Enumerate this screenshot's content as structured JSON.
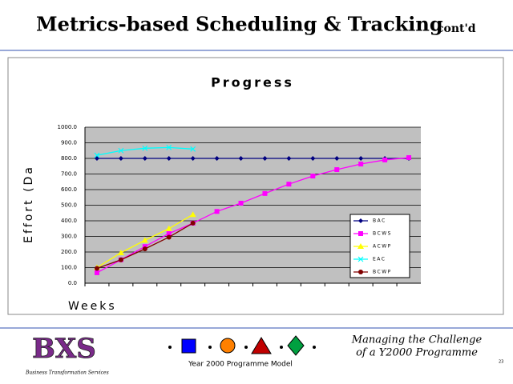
{
  "slide": {
    "title": "Metrics-based Scheduling & Tracking",
    "title_suffix": "cont'd",
    "footer_model": "Year 2000 Programme Model",
    "footer_right_1": "Managing the Challenge",
    "footer_right_2": "of a Y2000 Programme",
    "logo": "BXS",
    "logo_caption": "Business Transformation Services",
    "page_number": "23"
  },
  "chart_data": {
    "type": "line",
    "title": "Progress",
    "y_label": "Effort (Da",
    "x_label": "Weeks",
    "categories": [
      null,
      null,
      null,
      null,
      null,
      null,
      null,
      null,
      null,
      null,
      null,
      null,
      null,
      null
    ],
    "ylim": [
      0,
      1000
    ],
    "yticks": [
      {
        "value": 0,
        "label": "0.0"
      },
      {
        "value": 100,
        "label": "100.0"
      },
      {
        "value": 200,
        "label": "200.0"
      },
      {
        "value": 300,
        "label": "300.0"
      },
      {
        "value": 400,
        "label": "400.0"
      },
      {
        "value": 500,
        "label": "500.0"
      },
      {
        "value": 600,
        "label": "600.0"
      },
      {
        "value": 700,
        "label": "700.0"
      },
      {
        "value": 800,
        "label": "800.0"
      },
      {
        "value": 900,
        "label": "900.0"
      },
      {
        "value": 1000,
        "label": "1000.0"
      }
    ],
    "grid": true,
    "legend": "lower right",
    "series": [
      {
        "name": "BAC",
        "color": "#000080",
        "marker": "diamond",
        "values": [
          800,
          800,
          800,
          800,
          800,
          800,
          800,
          800,
          800,
          800,
          800,
          800,
          800,
          800
        ]
      },
      {
        "name": "BCWS",
        "color": "#ff00ff",
        "marker": "square",
        "values": [
          67,
          150,
          235,
          318,
          385,
          460,
          513,
          575,
          635,
          687,
          728,
          764,
          790,
          805
        ]
      },
      {
        "name": "ACWP",
        "color": "#ffff00",
        "marker": "triangle",
        "values": [
          100,
          195,
          275,
          350,
          440,
          null,
          null,
          null,
          null,
          null,
          null,
          null,
          null,
          null
        ]
      },
      {
        "name": "EAC",
        "color": "#00ffff",
        "marker": "x",
        "values": [
          820,
          850,
          865,
          870,
          860,
          null,
          null,
          null,
          null,
          null,
          null,
          null,
          null,
          null
        ]
      },
      {
        "name": "BCWP",
        "color": "#800000",
        "marker": "circle",
        "values": [
          95,
          150,
          220,
          295,
          385,
          null,
          null,
          null,
          null,
          null,
          null,
          null,
          null,
          null
        ]
      }
    ]
  }
}
